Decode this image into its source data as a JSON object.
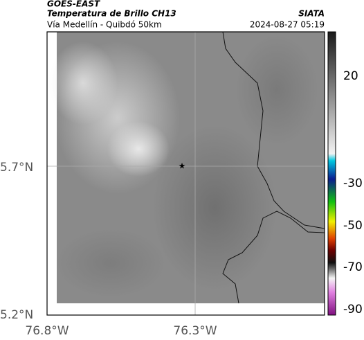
{
  "header": {
    "title": "GOES-EAST",
    "subtitle": "Temperatura de Brillo CH13",
    "location": "Vía Medellín - Quibdó 50km",
    "source": "SIATA",
    "timestamp": "2024-08-27 05:19"
  },
  "map": {
    "y_labels": [
      "5.7°N",
      "5.2°N"
    ],
    "x_labels": [
      "76.8°W",
      "76.3°W"
    ]
  },
  "colorbar": {
    "labels": [
      20,
      -30,
      -50,
      -70,
      -90
    ]
  }
}
